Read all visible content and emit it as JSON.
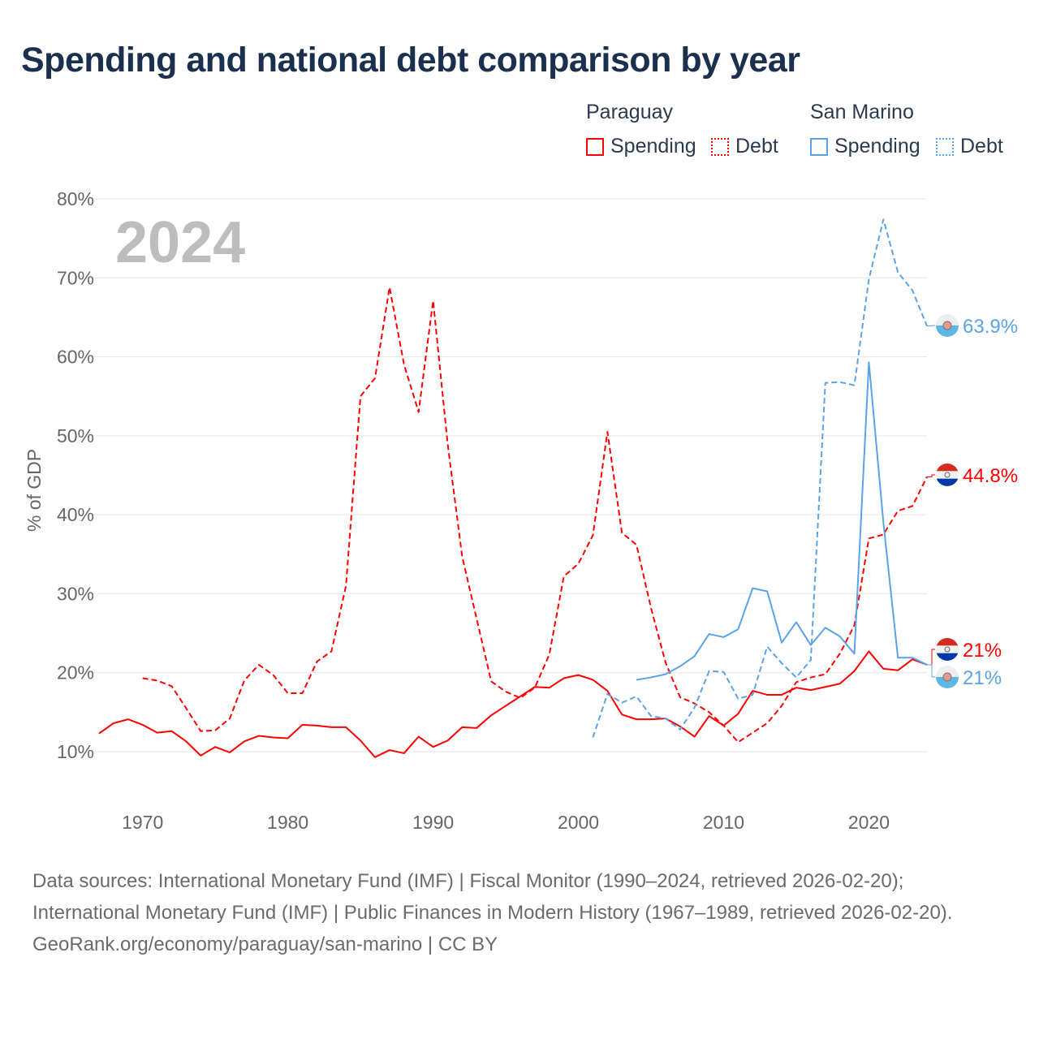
{
  "title": "Spending and national debt comparison by year",
  "legend": {
    "groups": [
      {
        "country": "Paraguay",
        "items": [
          "Spending",
          "Debt"
        ],
        "color": "#ff0000"
      },
      {
        "country": "San Marino",
        "items": [
          "Spending",
          "Debt"
        ],
        "color": "#5ba3e8"
      }
    ]
  },
  "year_watermark": "2024",
  "chart_data": {
    "type": "line",
    "title": "Spending and national debt comparison by year",
    "xlabel": "",
    "ylabel": "% of GDP",
    "xlim": [
      1967,
      2024
    ],
    "ylim": [
      4.4,
      80
    ],
    "xticks": [
      1970,
      1980,
      1990,
      2000,
      2010,
      2020
    ],
    "yticks": [
      10,
      20,
      30,
      40,
      50,
      60,
      70,
      80
    ],
    "ytick_labels": [
      "10%",
      "20%",
      "30%",
      "40%",
      "50%",
      "60%",
      "70%",
      "80%"
    ],
    "grid": true,
    "series": [
      {
        "name": "Paraguay Spending",
        "color": "#ff0000",
        "dash": false,
        "end_label": "21%",
        "start": 1967,
        "values": [
          12.3,
          13.6,
          14.1,
          13.4,
          12.4,
          12.6,
          11.3,
          9.5,
          10.6,
          9.9,
          11.3,
          12.0,
          11.8,
          11.7,
          13.4,
          13.3,
          13.1,
          13.1,
          11.4,
          9.3,
          10.2,
          9.8,
          11.9,
          10.6,
          11.4,
          13.1,
          13.0,
          14.6,
          15.8,
          17.0,
          18.2,
          18.1,
          19.3,
          19.7,
          19.1,
          17.7,
          14.7,
          14.1,
          14.1,
          14.2,
          13.2,
          11.9,
          14.5,
          13.3,
          14.8,
          17.7,
          17.2,
          17.2,
          18.1,
          17.8,
          18.2,
          18.6,
          20.2,
          22.7,
          20.5,
          20.3,
          21.7,
          21.0
        ]
      },
      {
        "name": "Paraguay Debt",
        "color": "#ff0000",
        "dash": true,
        "end_label": "44.8%",
        "start": 1970,
        "values": [
          19.3,
          19.0,
          18.3,
          15.5,
          12.6,
          12.7,
          14.2,
          19.0,
          21.0,
          19.7,
          17.4,
          17.4,
          21.4,
          22.7,
          31.0,
          55.0,
          57.3,
          68.8,
          59.0,
          53.0,
          67.1,
          49.0,
          34.7,
          26.8,
          18.9,
          17.6,
          16.8,
          18.1,
          22.3,
          32.2,
          33.8,
          37.4,
          50.5,
          37.7,
          36.2,
          28.2,
          21.3,
          16.9,
          16.1,
          15.0,
          13.3,
          11.2,
          12.4,
          13.6,
          15.8,
          18.8,
          19.4,
          19.8,
          22.4,
          26.0,
          37.0,
          37.5,
          40.5,
          41.1,
          44.8
        ]
      },
      {
        "name": "San Marino Spending",
        "color": "#5ba3e8",
        "dash": false,
        "end_label": "21%",
        "start": 2004,
        "values": [
          19.1,
          19.4,
          19.8,
          20.8,
          22.1,
          24.9,
          24.5,
          25.5,
          30.7,
          30.3,
          23.8,
          26.4,
          23.5,
          25.7,
          24.6,
          22.4,
          59.3,
          39.0,
          21.9,
          21.9,
          21.0
        ]
      },
      {
        "name": "San Marino Debt",
        "color": "#5ba3e8",
        "dash": true,
        "end_label": "63.9%",
        "start": 2001,
        "values": [
          11.8,
          17.3,
          16.2,
          17.0,
          14.5,
          14.2,
          12.8,
          15.6,
          20.2,
          20.1,
          16.7,
          17.2,
          23.3,
          21.2,
          19.4,
          21.6,
          56.7,
          56.8,
          56.4,
          69.8,
          77.4,
          70.7,
          68.4,
          63.9
        ]
      }
    ]
  },
  "footer": {
    "sources": "Data sources: International Monetary Fund (IMF) | Fiscal Monitor (1990–2024, retrieved 2026-02-20); International Monetary Fund (IMF) | Public Finances in Modern History (1967–1989, retrieved 2026-02-20).",
    "credit": "GeoRank.org/economy/paraguay/san-marino | CC BY"
  }
}
